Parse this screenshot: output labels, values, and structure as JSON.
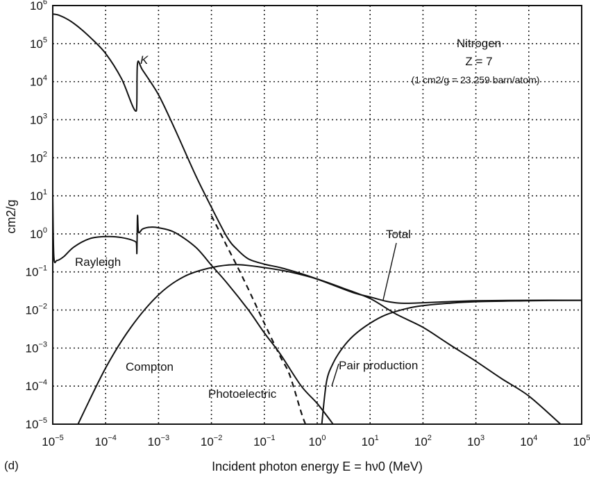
{
  "chart_data": {
    "type": "line",
    "xscale": "log",
    "yscale": "log",
    "xlim": [
      1e-05,
      100000.0
    ],
    "ylim": [
      1e-05,
      1000000.0
    ],
    "grid": true,
    "xlabel": "Incident photon energy E = hν0 (MeV)",
    "ylabel": "cm2/g",
    "x_ticks": [
      "10-5",
      "10-4",
      "10-3",
      "10-2",
      "10-1",
      "100",
      "101",
      "102",
      "103",
      "104",
      "105"
    ],
    "y_ticks": [
      "10-5",
      "10-4",
      "10-3",
      "10-2",
      "10-1",
      "100",
      "101",
      "102",
      "103",
      "104",
      "105",
      "106"
    ],
    "panel_label": "(d)",
    "info": {
      "element": "Nitrogen",
      "z": "Z = 7",
      "conversion": "(1 cm2/g = 23.259 barn/atom)"
    },
    "annotations": {
      "k_edge": "K",
      "rayleigh": "Rayleigh",
      "total": "Total",
      "compton": "Compton",
      "photoelectric": "Photoelectric",
      "pair": "Pair production"
    },
    "series": [
      {
        "name": "Total",
        "style": "solid",
        "points": [
          [
            1e-05,
            600000
          ],
          [
            1.3e-05,
            560000
          ],
          [
            2e-05,
            420000
          ],
          [
            3e-05,
            280000
          ],
          [
            5e-05,
            150000
          ],
          [
            0.0001,
            55000
          ],
          [
            0.0002,
            12000
          ],
          [
            0.00038,
            1700
          ],
          [
            0.0004,
            30000
          ],
          [
            0.0005,
            20000
          ],
          [
            0.001,
            4500
          ],
          [
            0.002,
            600
          ],
          [
            0.005,
            35
          ],
          [
            0.01,
            5
          ],
          [
            0.02,
            0.8
          ],
          [
            0.03,
            0.4
          ],
          [
            0.05,
            0.22
          ],
          [
            0.1,
            0.16
          ],
          [
            0.2,
            0.13
          ],
          [
            0.5,
            0.09
          ],
          [
            1,
            0.065
          ],
          [
            2,
            0.045
          ],
          [
            5,
            0.028
          ],
          [
            10,
            0.022
          ],
          [
            20,
            0.017
          ],
          [
            30,
            0.0155
          ],
          [
            50,
            0.015
          ],
          [
            100,
            0.0155
          ],
          [
            300,
            0.0165
          ],
          [
            1000,
            0.0175
          ],
          [
            10000.0,
            0.018
          ],
          [
            100000.0,
            0.018
          ]
        ]
      },
      {
        "name": "Rayleigh",
        "style": "solid",
        "points": [
          [
            1e-05,
            10
          ],
          [
            1.05e-05,
            0.25
          ],
          [
            1.2e-05,
            0.2
          ],
          [
            1.6e-05,
            0.25
          ],
          [
            2.5e-05,
            0.45
          ],
          [
            5e-05,
            0.75
          ],
          [
            0.0001,
            0.85
          ],
          [
            0.0002,
            0.8
          ],
          [
            0.00038,
            0.6
          ],
          [
            0.00039,
            0.32
          ],
          [
            0.0004,
            3
          ],
          [
            0.00042,
            1.1
          ],
          [
            0.0005,
            1.35
          ],
          [
            0.0007,
            1.5
          ],
          [
            0.001,
            1.45
          ],
          [
            0.002,
            1.1
          ],
          [
            0.005,
            0.45
          ],
          [
            0.01,
            0.15
          ],
          [
            0.02,
            0.05
          ],
          [
            0.05,
            0.01
          ],
          [
            0.1,
            0.0025
          ],
          [
            0.2,
            0.0007
          ],
          [
            0.5,
            0.0001
          ],
          [
            1,
            3.5e-05
          ],
          [
            2,
            1e-05
          ]
        ]
      },
      {
        "name": "Compton",
        "style": "solid",
        "points": [
          [
            3e-05,
            1e-05
          ],
          [
            0.0001,
            0.0003
          ],
          [
            0.0003,
            0.0035
          ],
          [
            0.001,
            0.025
          ],
          [
            0.003,
            0.075
          ],
          [
            0.01,
            0.13
          ],
          [
            0.03,
            0.155
          ],
          [
            0.1,
            0.13
          ],
          [
            0.3,
            0.1
          ],
          [
            1,
            0.065
          ],
          [
            3,
            0.038
          ],
          [
            10,
            0.02
          ],
          [
            30,
            0.008
          ],
          [
            100,
            0.0035
          ],
          [
            300,
            0.0013
          ],
          [
            1000,
            0.00045
          ],
          [
            3000,
            0.00016
          ],
          [
            10000.0,
            5.5e-05
          ],
          [
            40000.0,
            1e-05
          ]
        ]
      },
      {
        "name": "Photoelectric",
        "style": "dashed",
        "points": [
          [
            0.01,
            3
          ],
          [
            0.015,
            1
          ],
          [
            0.02,
            0.45
          ],
          [
            0.03,
            0.15
          ],
          [
            0.05,
            0.035
          ],
          [
            0.1,
            0.0045
          ],
          [
            0.2,
            0.0006
          ],
          [
            0.3,
            0.0002
          ],
          [
            0.5,
            2e-05
          ],
          [
            0.6,
            1e-05
          ]
        ]
      },
      {
        "name": "Pair production",
        "style": "solid",
        "points": [
          [
            1.22,
            1e-05
          ],
          [
            1.5,
            0.00013
          ],
          [
            2,
            0.0004
          ],
          [
            3,
            0.001
          ],
          [
            5,
            0.0022
          ],
          [
            10,
            0.0045
          ],
          [
            20,
            0.0075
          ],
          [
            50,
            0.011
          ],
          [
            100,
            0.013
          ],
          [
            300,
            0.015
          ],
          [
            1000,
            0.0165
          ],
          [
            10000.0,
            0.0175
          ],
          [
            100000.0,
            0.018
          ]
        ]
      }
    ]
  }
}
